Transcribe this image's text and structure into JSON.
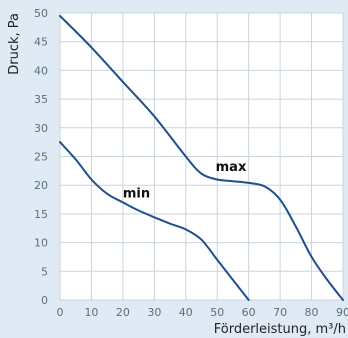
{
  "chart_data": {
    "type": "line",
    "xlabel": "Förderleistung, m³/h",
    "ylabel": "Druck, Pa",
    "xlim": [
      0,
      90
    ],
    "ylim": [
      0,
      50
    ],
    "x_ticks": [
      "0",
      "10",
      "20",
      "30",
      "40",
      "50",
      "60",
      "70",
      "80",
      "90"
    ],
    "y_ticks": [
      "0",
      "5",
      "10",
      "15",
      "20",
      "25",
      "30",
      "35",
      "40",
      "45",
      "50"
    ],
    "grid": true,
    "colors": {
      "series": "#1f4f8f",
      "grid": "#c9d4de",
      "background": "#dfeaf5"
    },
    "series": [
      {
        "name": "max",
        "x": [
          0,
          10,
          20,
          30,
          40,
          45,
          50,
          55,
          60,
          65,
          70,
          75,
          80,
          85,
          90
        ],
        "y": [
          49.5,
          44,
          38,
          32,
          25,
          22,
          21,
          20.7,
          20.4,
          19.8,
          17.5,
          12.8,
          7.5,
          3.5,
          0
        ]
      },
      {
        "name": "min",
        "x": [
          0,
          5,
          10,
          15,
          20,
          25,
          30,
          35,
          40,
          45,
          50,
          55,
          60
        ],
        "y": [
          27.5,
          24.5,
          21,
          18.5,
          17,
          15.6,
          14.4,
          13.3,
          12.3,
          10.5,
          7,
          3.5,
          0
        ]
      }
    ]
  }
}
